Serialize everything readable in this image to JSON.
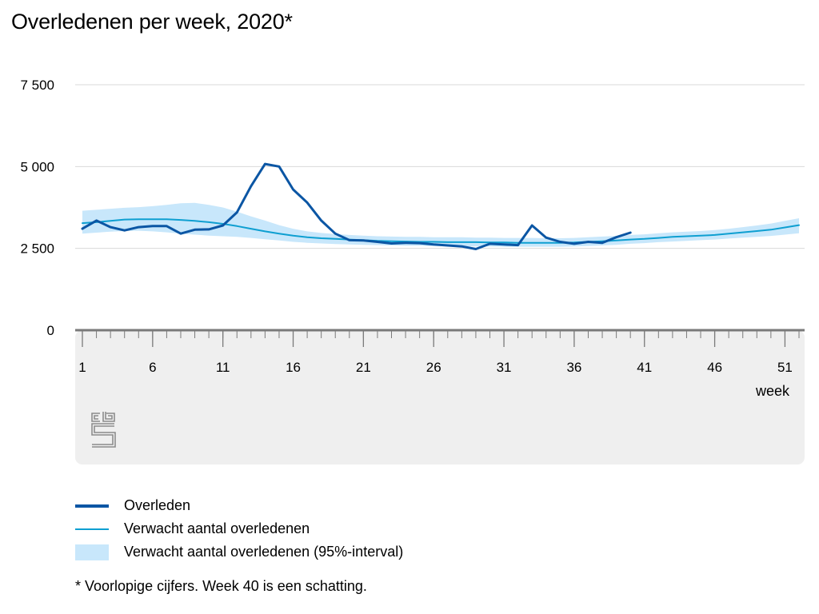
{
  "title": "Overledenen per week, 2020*",
  "footnote": "* Voorlopige cijfers. Week 40 is een schatting.",
  "logo": "cbs",
  "colors": {
    "observed": "#0b56a4",
    "expected": "#0e9fd1",
    "interval": "#c8e7fb",
    "panel": "#efefef",
    "axis": "#7a7a7a",
    "grid": "#d9d9d9"
  },
  "legend": [
    {
      "key": "observed",
      "label": "Overleden"
    },
    {
      "key": "expected",
      "label": "Verwacht aantal overledenen"
    },
    {
      "key": "interval",
      "label": "Verwacht aantal overledenen (95%-interval)"
    }
  ],
  "chart_data": {
    "type": "line",
    "title": "Overledenen per week, 2020*",
    "xlabel": "week",
    "ylabel": "",
    "xlim": [
      1,
      52
    ],
    "ylim": [
      0,
      7500
    ],
    "x_ticks": [
      1,
      6,
      11,
      16,
      21,
      26,
      31,
      36,
      41,
      46,
      51
    ],
    "y_ticks": [
      {
        "value": 0,
        "label": "0"
      },
      {
        "value": 2500,
        "label": "2 500"
      },
      {
        "value": 5000,
        "label": "5 000"
      },
      {
        "value": 7500,
        "label": "7 500"
      }
    ],
    "grid": true,
    "legend_position": "bottom",
    "series": [
      {
        "name": "Overleden",
        "x": [
          1,
          2,
          3,
          4,
          5,
          6,
          7,
          8,
          9,
          10,
          11,
          12,
          13,
          14,
          15,
          16,
          17,
          18,
          19,
          20,
          21,
          22,
          23,
          24,
          25,
          26,
          27,
          28,
          29,
          30,
          31,
          32,
          33,
          34,
          35,
          36,
          37,
          38,
          39,
          40
        ],
        "values": [
          3100,
          3350,
          3150,
          3050,
          3150,
          3180,
          3180,
          2950,
          3070,
          3080,
          3200,
          3600,
          4400,
          5080,
          5000,
          4300,
          3900,
          3350,
          2950,
          2750,
          2740,
          2700,
          2650,
          2670,
          2660,
          2620,
          2590,
          2560,
          2480,
          2640,
          2620,
          2600,
          3200,
          2830,
          2700,
          2640,
          2700,
          2670,
          2840,
          2980
        ]
      },
      {
        "name": "Verwacht aantal overledenen",
        "x": [
          1,
          2,
          3,
          4,
          5,
          6,
          7,
          8,
          9,
          10,
          11,
          12,
          13,
          14,
          15,
          16,
          17,
          18,
          19,
          20,
          21,
          22,
          23,
          24,
          25,
          26,
          27,
          28,
          29,
          30,
          31,
          32,
          33,
          34,
          35,
          36,
          37,
          38,
          39,
          40,
          41,
          42,
          43,
          44,
          45,
          46,
          47,
          48,
          49,
          50,
          51,
          52
        ],
        "values": [
          3270,
          3300,
          3340,
          3380,
          3390,
          3390,
          3390,
          3370,
          3340,
          3300,
          3250,
          3180,
          3100,
          3020,
          2950,
          2890,
          2840,
          2810,
          2790,
          2770,
          2750,
          2730,
          2720,
          2710,
          2700,
          2700,
          2690,
          2690,
          2690,
          2680,
          2680,
          2670,
          2670,
          2670,
          2670,
          2680,
          2700,
          2720,
          2740,
          2770,
          2790,
          2820,
          2850,
          2870,
          2890,
          2910,
          2950,
          2990,
          3030,
          3070,
          3140,
          3210
        ]
      },
      {
        "name": "Verwacht aantal overledenen (95%-interval)",
        "x": [
          1,
          2,
          3,
          4,
          5,
          6,
          7,
          8,
          9,
          10,
          11,
          12,
          13,
          14,
          15,
          16,
          17,
          18,
          19,
          20,
          21,
          22,
          23,
          24,
          25,
          26,
          27,
          28,
          29,
          30,
          31,
          32,
          33,
          34,
          35,
          36,
          37,
          38,
          39,
          40,
          41,
          42,
          43,
          44,
          45,
          46,
          47,
          48,
          49,
          50,
          51,
          52
        ],
        "lower": [
          2950,
          2980,
          3010,
          3030,
          3040,
          3020,
          2990,
          2950,
          2920,
          2890,
          2870,
          2850,
          2820,
          2780,
          2740,
          2700,
          2670,
          2650,
          2630,
          2620,
          2610,
          2600,
          2590,
          2580,
          2580,
          2570,
          2570,
          2560,
          2560,
          2560,
          2550,
          2550,
          2550,
          2550,
          2550,
          2560,
          2570,
          2590,
          2610,
          2640,
          2660,
          2690,
          2710,
          2730,
          2750,
          2770,
          2800,
          2830,
          2850,
          2880,
          2920,
          2960
        ],
        "upper": [
          3650,
          3680,
          3710,
          3740,
          3760,
          3790,
          3830,
          3880,
          3890,
          3830,
          3750,
          3620,
          3480,
          3350,
          3210,
          3100,
          3020,
          2970,
          2940,
          2910,
          2890,
          2870,
          2860,
          2850,
          2850,
          2840,
          2840,
          2840,
          2830,
          2830,
          2820,
          2820,
          2820,
          2810,
          2810,
          2820,
          2840,
          2860,
          2880,
          2910,
          2930,
          2960,
          2990,
          3010,
          3030,
          3060,
          3100,
          3150,
          3200,
          3260,
          3340,
          3420
        ]
      }
    ]
  }
}
